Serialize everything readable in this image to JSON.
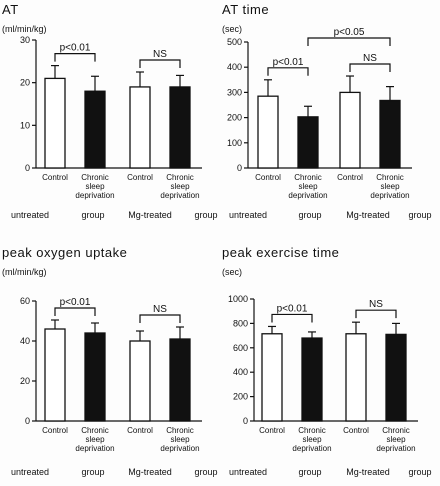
{
  "chart_data": [
    {
      "type": "bar",
      "title": "AT",
      "ylabel": "(ml/min/kg)",
      "ylim": [
        0,
        30
      ],
      "yticks": [
        0,
        10,
        20,
        30
      ],
      "categories": [
        "Control",
        "Chronic sleep deprivation",
        "Control",
        "Chronic sleep deprivation"
      ],
      "values": [
        21,
        18,
        19,
        19
      ],
      "errors": [
        3,
        3.5,
        3.5,
        2.7
      ],
      "fills": [
        "white",
        "black",
        "white",
        "black"
      ],
      "group_labels": [
        "untreated",
        "group",
        "Mg-treated",
        "group"
      ],
      "significance": [
        {
          "from": 0,
          "to": 1,
          "label": "p<0.01"
        },
        {
          "from": 2,
          "to": 3,
          "label": "NS"
        }
      ]
    },
    {
      "type": "bar",
      "title": "AT time",
      "ylabel": "(sec)",
      "ylim": [
        0,
        500
      ],
      "yticks": [
        0,
        100,
        200,
        300,
        400,
        500
      ],
      "categories": [
        "Control",
        "Chronic sleep deprivation",
        "Control",
        "Chronic sleep deprivation"
      ],
      "values": [
        285,
        203,
        300,
        268
      ],
      "errors": [
        65,
        42,
        65,
        55
      ],
      "fills": [
        "white",
        "black",
        "white",
        "black"
      ],
      "group_labels": [
        "untreated",
        "group",
        "Mg-treated",
        "group"
      ],
      "significance": [
        {
          "from": 0,
          "to": 1,
          "label": "p<0.01"
        },
        {
          "from": 2,
          "to": 3,
          "label": "NS"
        },
        {
          "from": 1,
          "to": 3,
          "label": "p<0.05"
        }
      ]
    },
    {
      "type": "bar",
      "title": "peak oxygen uptake",
      "ylabel": "(ml/min/kg)",
      "ylim": [
        0,
        60
      ],
      "yticks": [
        0,
        20,
        40,
        60
      ],
      "categories": [
        "Control",
        "Chronic sleep deprivation",
        "Control",
        "Chronic sleep deprivation"
      ],
      "values": [
        46,
        44,
        40,
        41
      ],
      "errors": [
        4.5,
        5,
        5,
        6
      ],
      "fills": [
        "white",
        "black",
        "white",
        "black"
      ],
      "group_labels": [
        "untreated",
        "group",
        "Mg-treated",
        "group"
      ],
      "significance": [
        {
          "from": 0,
          "to": 1,
          "label": "p<0.01"
        },
        {
          "from": 2,
          "to": 3,
          "label": "NS"
        }
      ]
    },
    {
      "type": "bar",
      "title": "peak exercise time",
      "ylabel": "(sec)",
      "ylim": [
        0,
        1000
      ],
      "yticks": [
        0,
        200,
        400,
        600,
        800,
        1000
      ],
      "categories": [
        "Control",
        "Chronic sleep deprivation",
        "Control",
        "Chronic sleep deprivation"
      ],
      "values": [
        715,
        680,
        715,
        710
      ],
      "errors": [
        60,
        50,
        95,
        90
      ],
      "fills": [
        "white",
        "black",
        "white",
        "black"
      ],
      "group_labels": [
        "untreated",
        "group",
        "Mg-treated",
        "group"
      ],
      "significance": [
        {
          "from": 0,
          "to": 1,
          "label": "p<0.01"
        },
        {
          "from": 2,
          "to": 3,
          "label": "NS"
        }
      ]
    }
  ]
}
